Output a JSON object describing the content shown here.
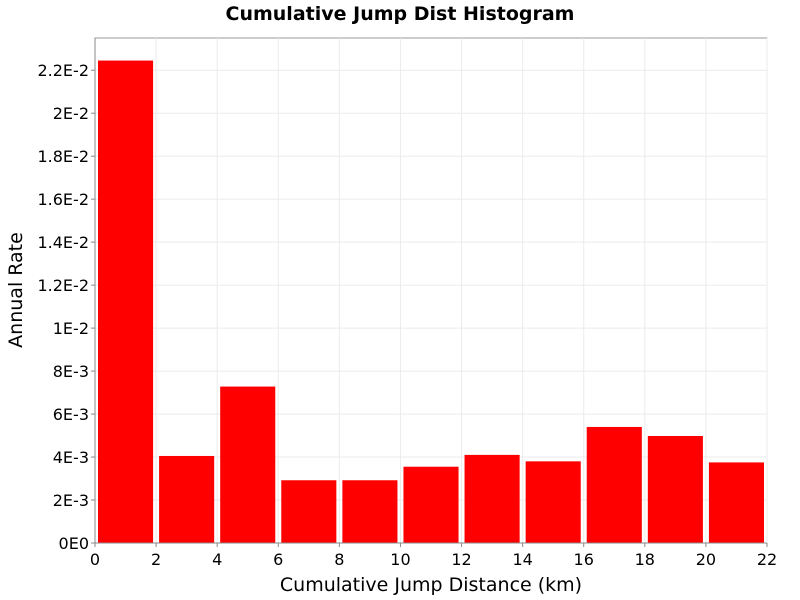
{
  "chart_data": {
    "type": "bar",
    "title": "Cumulative Jump Dist Histogram",
    "xlabel": "Cumulative Jump Distance (km)",
    "ylabel": "Annual Rate",
    "xlim": [
      0,
      22
    ],
    "ylim": [
      0,
      0.0235
    ],
    "grid": true,
    "bar_color": "#ff0000",
    "x_ticks": [
      {
        "value": 0,
        "label": "0"
      },
      {
        "value": 2,
        "label": "2"
      },
      {
        "value": 4,
        "label": "4"
      },
      {
        "value": 6,
        "label": "6"
      },
      {
        "value": 8,
        "label": "8"
      },
      {
        "value": 10,
        "label": "10"
      },
      {
        "value": 12,
        "label": "12"
      },
      {
        "value": 14,
        "label": "14"
      },
      {
        "value": 16,
        "label": "16"
      },
      {
        "value": 18,
        "label": "18"
      },
      {
        "value": 20,
        "label": "20"
      },
      {
        "value": 22,
        "label": "22"
      }
    ],
    "y_ticks": [
      {
        "value": 0,
        "label": "0E0"
      },
      {
        "value": 0.002,
        "label": "2E-3"
      },
      {
        "value": 0.004,
        "label": "4E-3"
      },
      {
        "value": 0.006,
        "label": "6E-3"
      },
      {
        "value": 0.008,
        "label": "8E-3"
      },
      {
        "value": 0.01,
        "label": "1E-2"
      },
      {
        "value": 0.012,
        "label": "1.2E-2"
      },
      {
        "value": 0.014,
        "label": "1.4E-2"
      },
      {
        "value": 0.016,
        "label": "1.6E-2"
      },
      {
        "value": 0.018,
        "label": "1.8E-2"
      },
      {
        "value": 0.02,
        "label": "2E-2"
      },
      {
        "value": 0.022,
        "label": "2.2E-2"
      }
    ],
    "bars": [
      {
        "x_start": 0,
        "x_end": 2,
        "value": 0.02245
      },
      {
        "x_start": 2,
        "x_end": 4,
        "value": 0.00405
      },
      {
        "x_start": 4,
        "x_end": 6,
        "value": 0.00728
      },
      {
        "x_start": 6,
        "x_end": 8,
        "value": 0.00292
      },
      {
        "x_start": 8,
        "x_end": 10,
        "value": 0.00292
      },
      {
        "x_start": 10,
        "x_end": 12,
        "value": 0.00355
      },
      {
        "x_start": 12,
        "x_end": 14,
        "value": 0.0041
      },
      {
        "x_start": 14,
        "x_end": 16,
        "value": 0.0038
      },
      {
        "x_start": 16,
        "x_end": 18,
        "value": 0.0054
      },
      {
        "x_start": 18,
        "x_end": 20,
        "value": 0.00498
      },
      {
        "x_start": 20,
        "x_end": 22,
        "value": 0.00375
      }
    ]
  }
}
